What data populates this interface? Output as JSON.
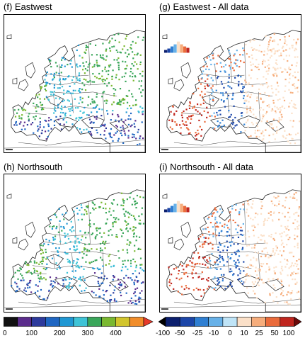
{
  "panels": [
    {
      "title": "(f)  Eastwest",
      "kind": "abs",
      "variant": 0
    },
    {
      "title": "(g)  Eastwest - All data",
      "kind": "diff",
      "variant": 0
    },
    {
      "title": "(h)  Northsouth",
      "kind": "abs",
      "variant": 1
    },
    {
      "title": "(i)  Northsouth - All data",
      "kind": "diff",
      "variant": 1
    }
  ],
  "colorbars": [
    {
      "labels": [
        "0",
        "100",
        "200",
        "300",
        "400"
      ],
      "colors": [
        "#111111",
        "#5b2c8c",
        "#2d3a9c",
        "#1f66c2",
        "#1f97d3",
        "#3ec3d6",
        "#3aa65a",
        "#7ab830",
        "#d2c52d",
        "#f18d2a"
      ],
      "arrow_color": "#e63a2a"
    },
    {
      "labels": [
        "-100",
        "-50",
        "-25",
        "-10",
        "0",
        "10",
        "25",
        "50",
        "100"
      ],
      "colors": [
        "#0c1f6e",
        "#1c46a8",
        "#2f7fd2",
        "#67b1e8",
        "#bfe4f7",
        "#fbe0c8",
        "#f6ad7c",
        "#ea6b3b",
        "#c0261f"
      ],
      "left_arrow": "#000000",
      "right_arrow": "#6b0a0a"
    }
  ]
}
